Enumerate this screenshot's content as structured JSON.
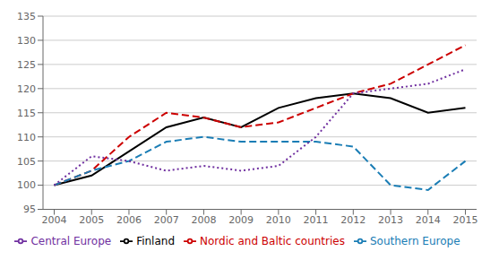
{
  "chart_data": {
    "type": "line",
    "x": [
      2004,
      2005,
      2006,
      2007,
      2008,
      2009,
      2010,
      2011,
      2012,
      2013,
      2014,
      2015
    ],
    "series": [
      {
        "name": "Finland",
        "color": "#000000",
        "line_style": "solid",
        "values": [
          100,
          102,
          107,
          112,
          114,
          112,
          116,
          118,
          119,
          118,
          115,
          116
        ]
      },
      {
        "name": "Nordic and Baltic countries",
        "color": "#cc0000",
        "line_style": "dashed",
        "values": [
          100,
          103,
          110,
          115,
          114,
          112,
          113,
          116,
          119,
          121,
          125,
          129
        ]
      },
      {
        "name": "Southern Europe",
        "color": "#1a7db5",
        "line_style": "dashed",
        "values": [
          100,
          103,
          105,
          109,
          110,
          109,
          109,
          109,
          108,
          100,
          99,
          105
        ]
      },
      {
        "name": "Central Europe",
        "color": "#7030a0",
        "line_style": "dotted",
        "values": [
          100,
          106,
          105,
          103,
          104,
          103,
          104,
          110,
          119,
          120,
          121,
          124
        ]
      }
    ],
    "xlim": [
      2003.7,
      2015.3
    ],
    "xticks": [
      2004,
      2005,
      2006,
      2007,
      2008,
      2009,
      2010,
      2011,
      2012,
      2013,
      2014,
      2015
    ],
    "ylim": [
      95,
      135
    ],
    "yticks": [
      95,
      100,
      105,
      110,
      115,
      120,
      125,
      130,
      135
    ],
    "grid": true,
    "legend": "bottom"
  }
}
